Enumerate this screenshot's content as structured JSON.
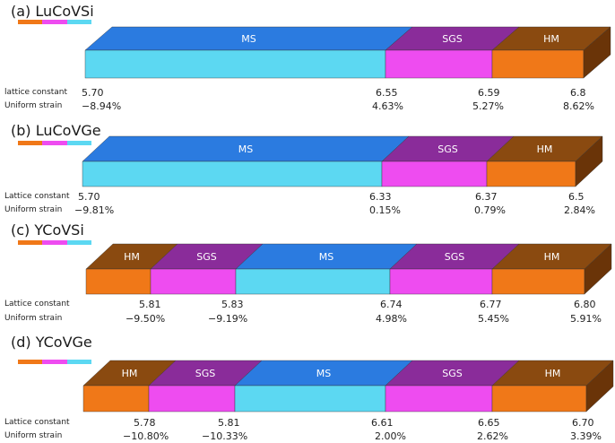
{
  "colors": {
    "MS": {
      "top": "#2b7be0",
      "front": "#5cd8f2",
      "side": "#1e5fb8"
    },
    "SGS": {
      "top": "#8a2c9a",
      "front": "#ee4cf0",
      "side": "#6e1f7c"
    },
    "HM": {
      "top": "#8a4a10",
      "front": "#f07818",
      "side": "#6a3408"
    }
  },
  "legend_colors": [
    "#f07818",
    "#ee4cf0",
    "#5cd8f2"
  ],
  "panels": [
    {
      "title": "(a) LuCoVSi",
      "lattice_label": "lattice constant",
      "strain_label": "Uniform strain",
      "segments": [
        {
          "label": "MS",
          "phase": "MS"
        },
        {
          "label": "SGS",
          "phase": "SGS"
        },
        {
          "label": "HM",
          "phase": "HM"
        }
      ],
      "lattice_values": [
        "5.70",
        "6.55",
        "6.59",
        "6.8"
      ],
      "strain_values": [
        "−8.94%",
        "4.63%",
        "5.27%",
        "8.62%"
      ]
    },
    {
      "title": "(b) LuCoVGe",
      "lattice_label": "Lattice constant",
      "strain_label": "Uniform strain",
      "segments": [
        {
          "label": "MS",
          "phase": "MS"
        },
        {
          "label": "SGS",
          "phase": "SGS"
        },
        {
          "label": "HM",
          "phase": "HM"
        }
      ],
      "lattice_values": [
        "5.70",
        "6.33",
        "6.37",
        "6.5"
      ],
      "strain_values": [
        "−9.81%",
        "0.15%",
        "0.79%",
        "2.84%"
      ]
    },
    {
      "title": "(c) YCoVSi",
      "lattice_label": "Lattice constant",
      "strain_label": "Uniform strain",
      "segments": [
        {
          "label": "HM",
          "phase": "HM"
        },
        {
          "label": "SGS",
          "phase": "SGS"
        },
        {
          "label": "MS",
          "phase": "MS"
        },
        {
          "label": "SGS",
          "phase": "SGS"
        },
        {
          "label": "HM",
          "phase": "HM"
        }
      ],
      "lattice_values": [
        "5.81",
        "5.83",
        "6.74",
        "6.77",
        "6.80"
      ],
      "strain_values": [
        "−9.50%",
        "−9.19%",
        "4.98%",
        "5.45%",
        "5.91%"
      ]
    },
    {
      "title": "(d) YCoVGe",
      "lattice_label": "Lattice constant",
      "strain_label": "Uniform strain",
      "segments": [
        {
          "label": "HM",
          "phase": "HM"
        },
        {
          "label": "SGS",
          "phase": "SGS"
        },
        {
          "label": "MS",
          "phase": "MS"
        },
        {
          "label": "SGS",
          "phase": "SGS"
        },
        {
          "label": "HM",
          "phase": "HM"
        }
      ],
      "lattice_values": [
        "5.78",
        "5.81",
        "6.61",
        "6.65",
        "6.70"
      ],
      "strain_values": [
        "−10.80%",
        "−10.33%",
        "2.00%",
        "2.62%",
        "3.39%"
      ]
    }
  ]
}
